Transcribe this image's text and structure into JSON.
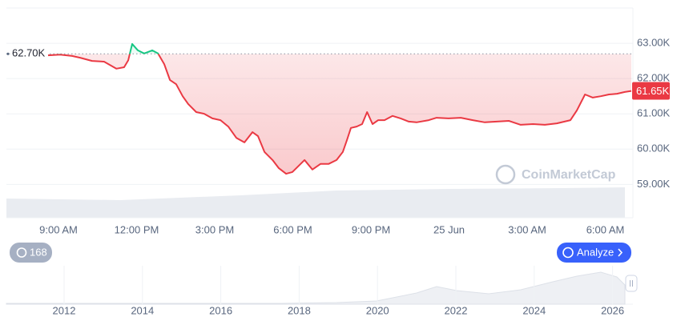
{
  "chart_data": {
    "type": "line",
    "x": [
      8.6,
      9.06,
      9.52,
      9.83,
      10.29,
      10.75,
      11.22,
      11.52,
      11.68,
      11.83,
      12.05,
      12.29,
      12.6,
      12.82,
      13.06,
      13.28,
      13.52,
      13.77,
      13.98,
      14.29,
      14.6,
      14.91,
      15.22,
      15.52,
      15.83,
      16.14,
      16.45,
      16.66,
      16.91,
      17.22,
      17.46,
      17.74,
      17.98,
      18.2,
      18.45,
      18.75,
      19.06,
      19.37,
      19.68,
      19.92,
      20.08,
      20.23,
      20.45,
      20.66,
      20.85,
      21.06,
      21.28,
      21.52,
      21.83,
      22.14,
      22.45,
      22.75,
      23.22,
      23.52,
      23.98,
      24.45,
      24.91,
      25.37,
      25.83,
      26.29,
      26.75,
      27.22,
      27.68,
      28.14,
      28.66,
      28.91,
      29.22,
      29.52,
      29.83,
      30.14,
      30.45,
      30.75,
      31.0
    ],
    "values": [
      62660,
      62680,
      62640,
      62590,
      62500,
      62480,
      62280,
      62320,
      62520,
      62980,
      62800,
      62710,
      62800,
      62710,
      62410,
      61960,
      61840,
      61500,
      61280,
      61050,
      61000,
      60870,
      60820,
      60640,
      60320,
      60190,
      60480,
      60370,
      59920,
      59690,
      59460,
      59300,
      59350,
      59510,
      59690,
      59420,
      59580,
      59580,
      59690,
      59920,
      60260,
      60600,
      60640,
      60710,
      61050,
      60710,
      60820,
      60820,
      60940,
      60870,
      60780,
      60760,
      60820,
      60890,
      60870,
      60890,
      60820,
      60760,
      60780,
      60800,
      60690,
      60710,
      60690,
      60730,
      60820,
      61100,
      61550,
      61460,
      61500,
      61550,
      61570,
      61620,
      61650
    ],
    "last_value_label": "61.65K",
    "up_color": "#16c784",
    "down_color": "#ea3943",
    "baseline": {
      "value": 62700,
      "label": "62.70K"
    },
    "xlim": [
      7,
      31.06
    ],
    "xticks": [
      {
        "value": 9,
        "label": "9:00 AM"
      },
      {
        "value": 12,
        "label": "12:00 PM"
      },
      {
        "value": 15,
        "label": "3:00 PM"
      },
      {
        "value": 18,
        "label": "6:00 PM"
      },
      {
        "value": 21,
        "label": "9:00 PM"
      },
      {
        "value": 24,
        "label": "25 Jun"
      },
      {
        "value": 27,
        "label": "3:00 AM"
      },
      {
        "value": 30,
        "label": "6:00 AM"
      }
    ],
    "ylim": [
      58100,
      64000
    ],
    "yticks": [
      {
        "value": 59000,
        "label": "59.00K"
      },
      {
        "value": 60000,
        "label": "60.00K"
      },
      {
        "value": 61000,
        "label": "61.00K"
      },
      {
        "value": 62000,
        "label": "62.00K"
      },
      {
        "value": 63000,
        "label": "63.00K"
      }
    ],
    "grid": true,
    "watermark": "CoinMarketCap",
    "history_count": 168,
    "analyze_button": "Analyze",
    "navigator_ticks": [
      "2012",
      "2014",
      "2016",
      "2018",
      "2020",
      "2022",
      "2024",
      "2026"
    ]
  }
}
